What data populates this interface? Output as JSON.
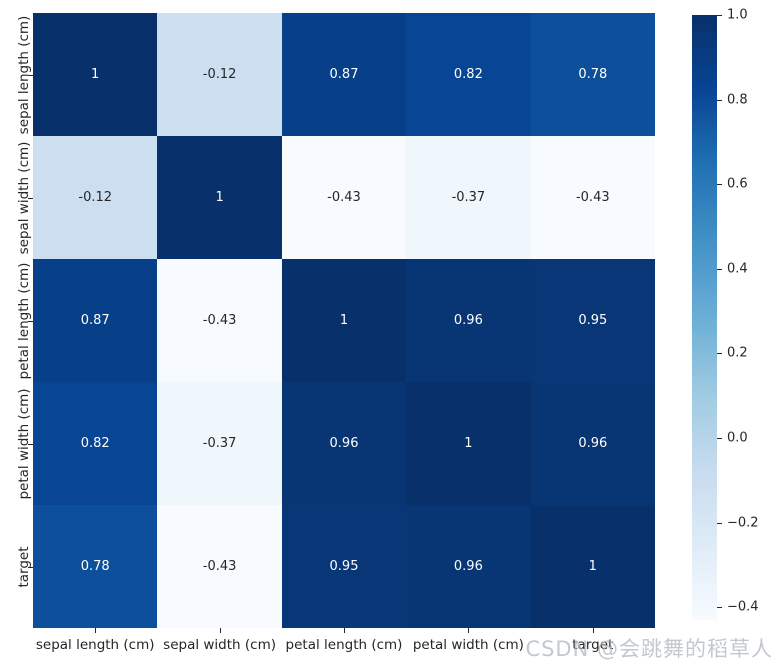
{
  "watermark": "CSDN @会跳舞的稻草人",
  "colors": {
    "background": "#ffffff",
    "tick_label": "#262626",
    "annotation_on_dark": "#ffffff",
    "annotation_on_light": "#262626",
    "watermark": "#b1b8bf"
  },
  "chart_data": {
    "type": "heatmap",
    "title": "",
    "xlabel": "",
    "ylabel": "",
    "x_tick_labels": [
      "sepal length (cm)",
      "sepal width (cm)",
      "petal length (cm)",
      "petal width (cm)",
      "target"
    ],
    "y_tick_labels": [
      "sepal length (cm)",
      "sepal width (cm)",
      "petal length (cm)",
      "petal width (cm)",
      "target"
    ],
    "matrix": [
      [
        1.0,
        -0.12,
        0.87,
        0.82,
        0.78
      ],
      [
        -0.12,
        1.0,
        -0.43,
        -0.37,
        -0.43
      ],
      [
        0.87,
        -0.43,
        1.0,
        0.96,
        0.95
      ],
      [
        0.82,
        -0.37,
        0.96,
        1.0,
        0.96
      ],
      [
        0.78,
        -0.43,
        0.95,
        0.96,
        1.0
      ]
    ],
    "annotations": [
      [
        "1",
        "-0.12",
        "0.87",
        "0.82",
        "0.78"
      ],
      [
        "-0.12",
        "1",
        "-0.43",
        "-0.37",
        "-0.43"
      ],
      [
        "0.87",
        "-0.43",
        "1",
        "0.96",
        "0.95"
      ],
      [
        "0.82",
        "-0.37",
        "0.96",
        "1",
        "0.96"
      ],
      [
        "0.78",
        "-0.43",
        "0.95",
        "0.96",
        "1"
      ]
    ],
    "colormap": "Blues",
    "vmin": -0.43,
    "vmax": 1.0,
    "grid": false,
    "legend": false,
    "colorbar": {
      "position": "right",
      "ticks": [
        {
          "label": "1.0",
          "value": 1.0
        },
        {
          "label": "0.8",
          "value": 0.8
        },
        {
          "label": "0.6",
          "value": 0.6
        },
        {
          "label": "0.4",
          "value": 0.4
        },
        {
          "label": "0.2",
          "value": 0.2
        },
        {
          "label": "0.0",
          "value": 0.0
        },
        {
          "label": "−0.2",
          "value": -0.2
        },
        {
          "label": "−0.4",
          "value": -0.4
        }
      ]
    }
  }
}
